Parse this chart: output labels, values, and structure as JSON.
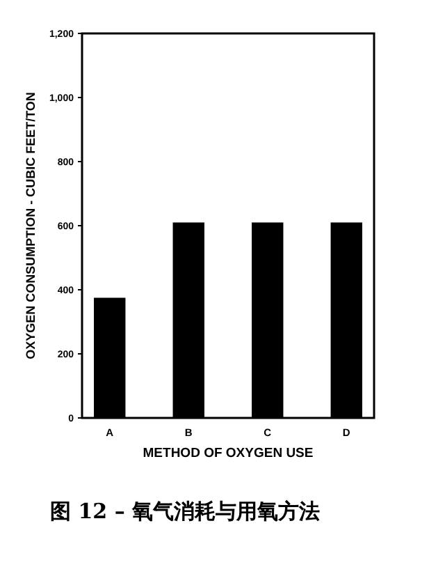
{
  "chart_data": {
    "type": "bar",
    "title": "图 12 – 氧气消耗与用氧方法",
    "xlabel": "METHOD OF OXYGEN USE",
    "ylabel": "OXYGEN CONSUMPTION - CUBIC FEET/TON",
    "categories": [
      "A",
      "B",
      "C",
      "D"
    ],
    "values": [
      375,
      610,
      610,
      610
    ],
    "color": "#000000",
    "ylim": [
      0,
      1200
    ],
    "yticks": [
      0,
      200,
      400,
      600,
      800,
      {
        "value": 1000,
        "label": "1,000"
      },
      {
        "value": 1200,
        "label": "1,200"
      }
    ],
    "grid": false,
    "legend": false
  }
}
